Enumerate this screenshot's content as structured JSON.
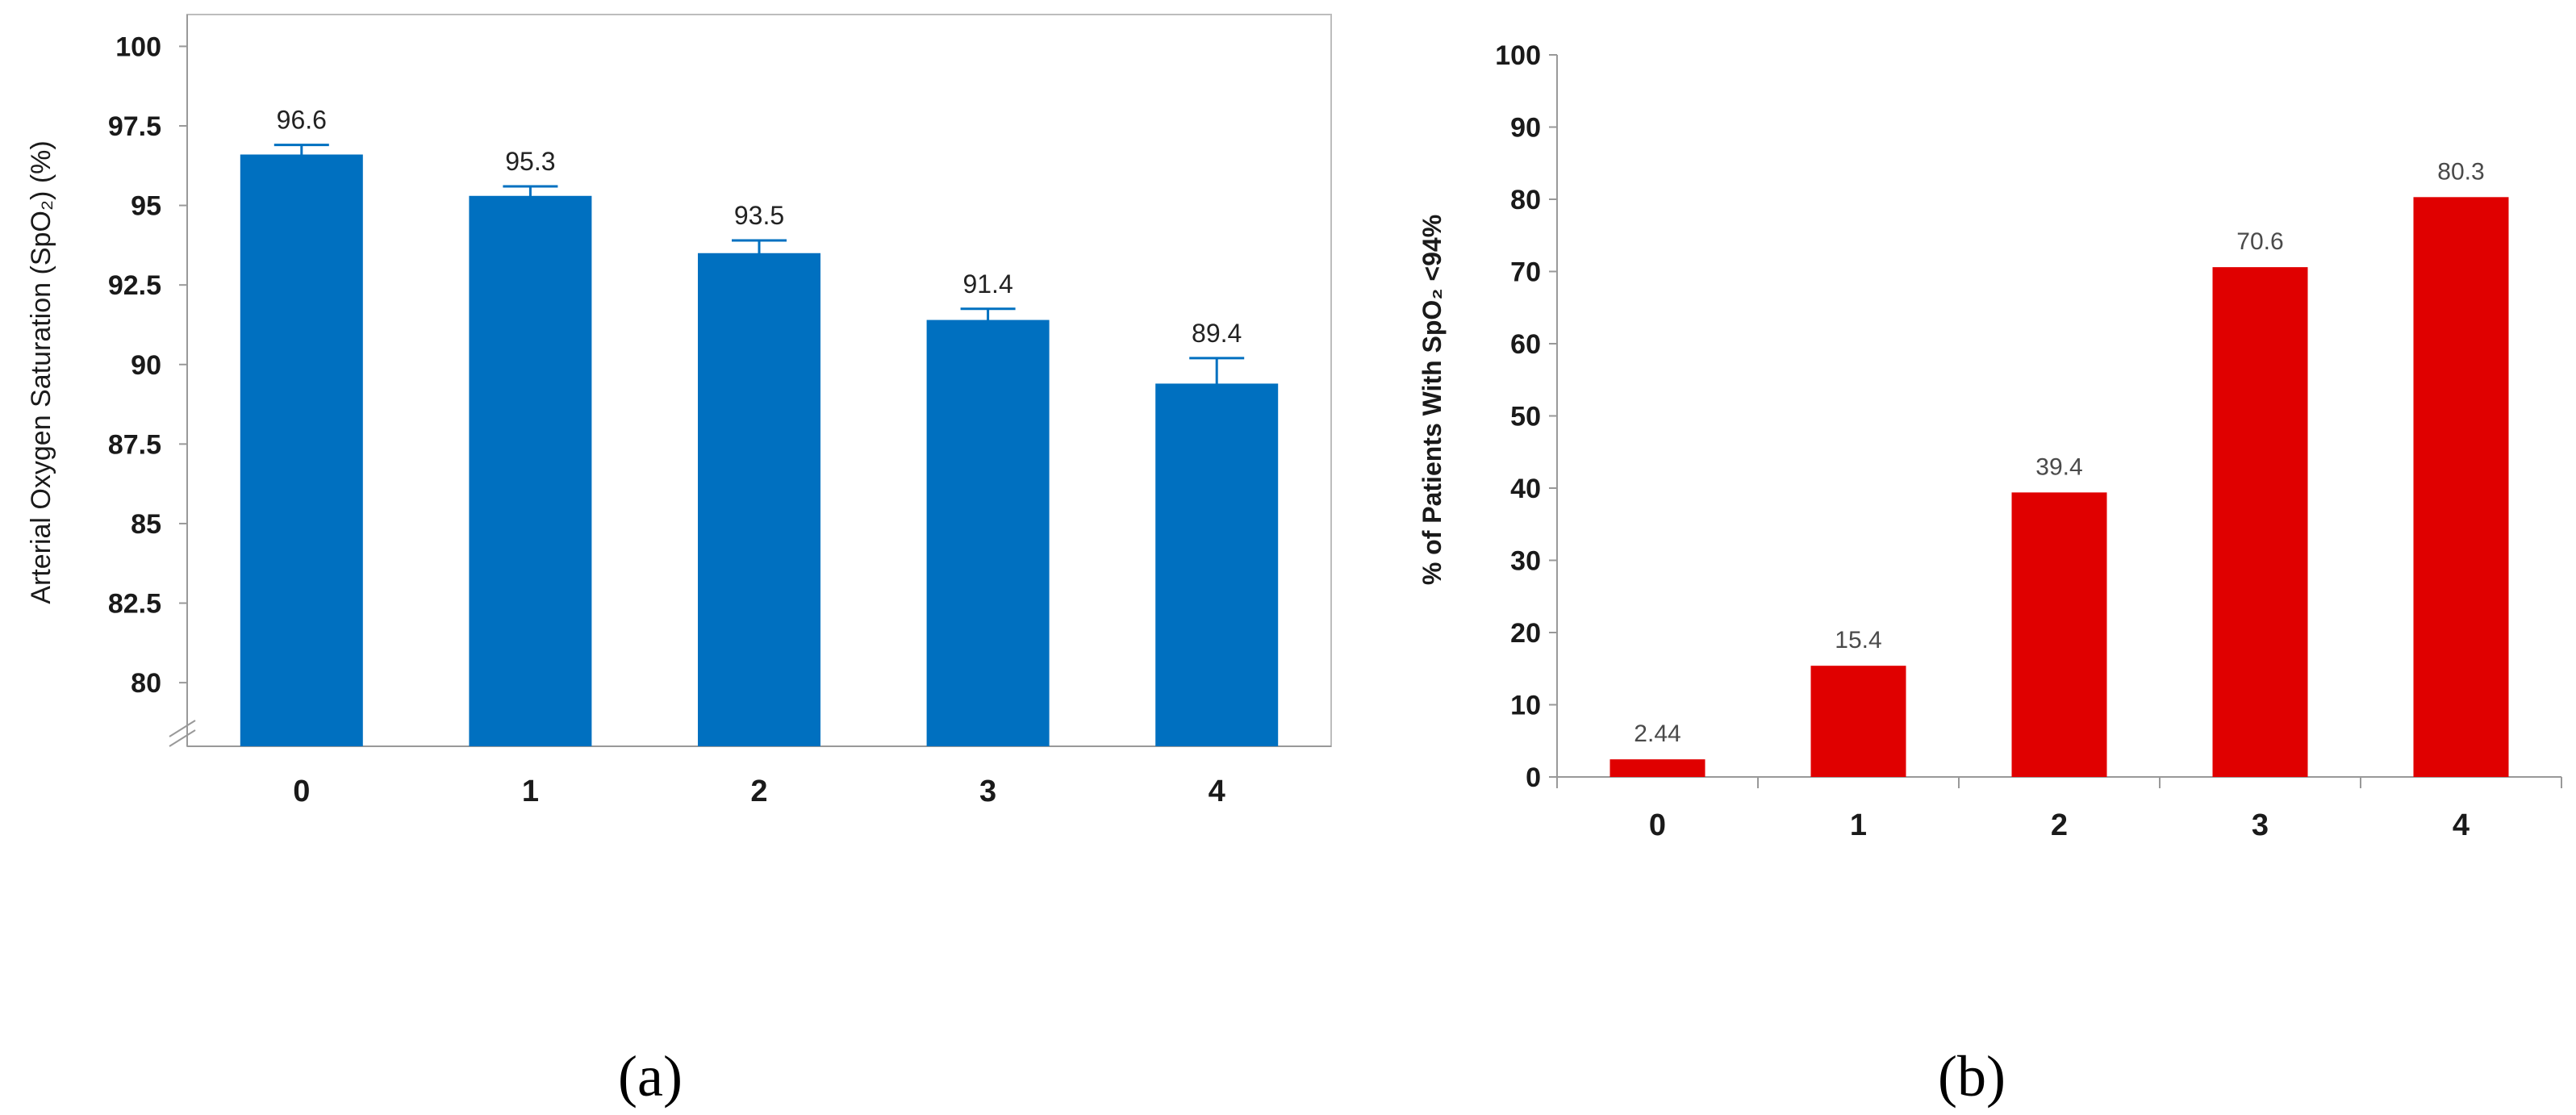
{
  "colors": {
    "panel_a_bar": "#0070C0",
    "panel_b_bar": "#E00000",
    "axis": "#999999"
  },
  "panel_labels": [
    "(a)",
    "(b)"
  ],
  "chart_data": [
    {
      "type": "bar",
      "panel": "(a)",
      "categories": [
        "0",
        "1",
        "2",
        "3",
        "4"
      ],
      "values": [
        96.6,
        95.3,
        93.5,
        91.4,
        89.4
      ],
      "data_labels": [
        "96.6",
        "95.3",
        "93.5",
        "91.4",
        "89.4"
      ],
      "error_bars": [
        0.3,
        0.3,
        0.4,
        0.35,
        0.8
      ],
      "ylabel": "Arterial Oxygen Saturation (SpO₂) (%)",
      "xlabel": "",
      "ylim": [
        78,
        101
      ],
      "y_ticks": [
        80,
        82.5,
        85,
        87.5,
        90,
        92.5,
        95,
        97.5,
        100
      ],
      "y_tick_labels": [
        "80",
        "82.5",
        "85",
        "87.5",
        "90",
        "92.5",
        "95",
        "97.5",
        "100"
      ],
      "axis_break": true,
      "grid": false,
      "legend": "none"
    },
    {
      "type": "bar",
      "panel": "(b)",
      "categories": [
        "0",
        "1",
        "2",
        "3",
        "4"
      ],
      "values": [
        2.44,
        15.4,
        39.4,
        70.6,
        80.3
      ],
      "data_labels": [
        "2.44",
        "15.4",
        "39.4",
        "70.6",
        "80.3"
      ],
      "ylabel": "% of Patients With SpO₂ <94%",
      "xlabel": "",
      "ylim": [
        0,
        100
      ],
      "y_ticks": [
        0,
        10,
        20,
        30,
        40,
        50,
        60,
        70,
        80,
        90,
        100
      ],
      "y_tick_labels": [
        "0",
        "10",
        "20",
        "30",
        "40",
        "50",
        "60",
        "70",
        "80",
        "90",
        "100"
      ],
      "grid": false,
      "legend": "none"
    }
  ]
}
